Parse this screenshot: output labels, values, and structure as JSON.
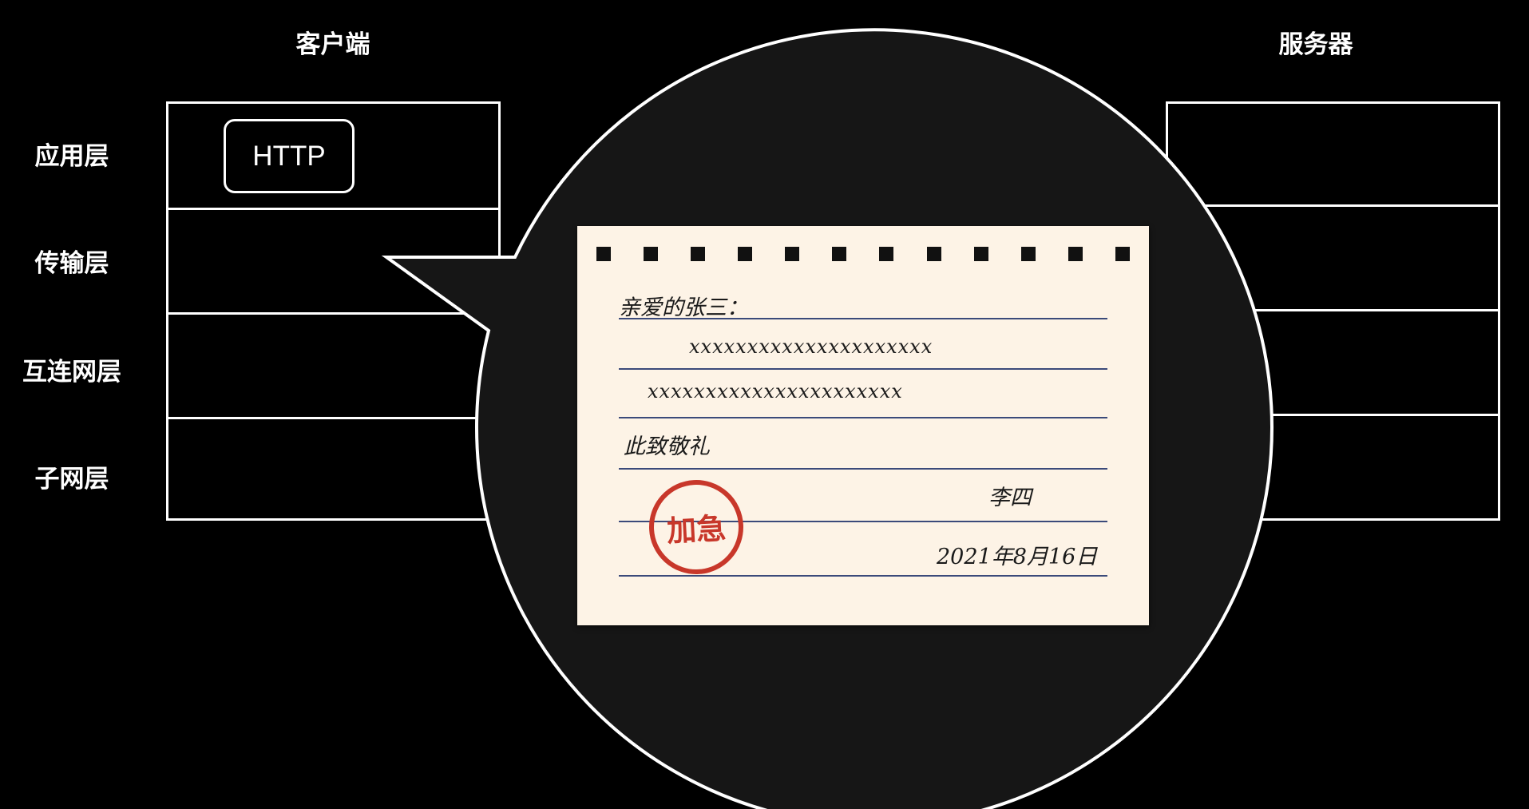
{
  "client_title": "客户端",
  "server_title": "服务器",
  "layers": [
    "应用层",
    "传输层",
    "互连网层",
    "子网层"
  ],
  "http_label": "HTTP",
  "letter": {
    "greeting": "亲爱的张三：",
    "line1": "xxxxxxxxxxxxxxxxxxxxx",
    "line2": "xxxxxxxxxxxxxxxxxxxxxx",
    "closing": "此致敬礼",
    "signature": "李四",
    "date": "2021年8月16日",
    "stamp": "加急"
  },
  "colors": {
    "stamp": "#c8372a",
    "paper": "#fdf3e6",
    "rule": "#3b4a7a"
  }
}
